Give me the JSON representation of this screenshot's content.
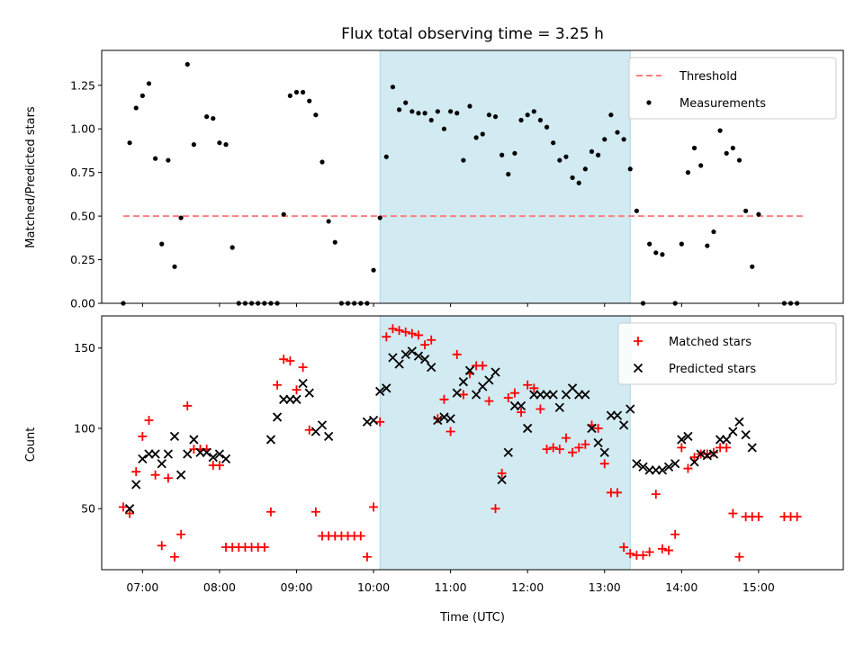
{
  "figure": {
    "title": "Flux total observing time = 3.25 h",
    "xlabel": "Time (UTC)",
    "xticks": [
      "07:00",
      "08:00",
      "09:00",
      "10:00",
      "11:00",
      "12:00",
      "13:00",
      "14:00",
      "15:00"
    ]
  },
  "chart_data": [
    {
      "type": "scatter",
      "panel": "top",
      "ylabel": "Matched/Predicted stars",
      "ylim": [
        0,
        1.45
      ],
      "yticks": [
        "0.00",
        "0.25",
        "0.50",
        "0.75",
        "1.00",
        "1.25"
      ],
      "xlim_hours": [
        6.47,
        16.1
      ],
      "shaded_interval": [
        "10:05",
        "13:20"
      ],
      "threshold": {
        "name": "Threshold",
        "value": 0.5,
        "x_range": [
          "06:45",
          "15:35"
        ],
        "color": "#ff7f7f"
      },
      "legend": {
        "position": "top-right",
        "entries": [
          "Threshold",
          "Measurements"
        ]
      },
      "series": [
        {
          "name": "Measurements",
          "color": "#000000",
          "x": [
            "06:45",
            "06:50",
            "06:55",
            "07:00",
            "07:05",
            "07:10",
            "07:15",
            "07:20",
            "07:25",
            "07:30",
            "07:35",
            "07:40",
            "07:50",
            "07:55",
            "08:00",
            "08:05",
            "08:10",
            "08:15",
            "08:20",
            "08:25",
            "08:30",
            "08:35",
            "08:40",
            "08:45",
            "08:50",
            "08:55",
            "09:00",
            "09:05",
            "09:10",
            "09:15",
            "09:20",
            "09:25",
            "09:30",
            "09:35",
            "09:40",
            "09:45",
            "09:50",
            "09:55",
            "10:00",
            "10:05",
            "10:10",
            "10:15",
            "10:20",
            "10:25",
            "10:30",
            "10:35",
            "10:40",
            "10:45",
            "10:50",
            "10:55",
            "11:00",
            "11:05",
            "11:10",
            "11:15",
            "11:20",
            "11:25",
            "11:30",
            "11:35",
            "11:40",
            "11:45",
            "11:50",
            "11:55",
            "12:00",
            "12:05",
            "12:10",
            "12:15",
            "12:20",
            "12:25",
            "12:30",
            "12:35",
            "12:40",
            "12:45",
            "12:50",
            "12:55",
            "13:00",
            "13:05",
            "13:10",
            "13:15",
            "13:20",
            "13:25",
            "13:30",
            "13:35",
            "13:40",
            "13:45",
            "13:55",
            "14:00",
            "14:05",
            "14:10",
            "14:15",
            "14:20",
            "14:25",
            "14:30",
            "14:35",
            "14:40",
            "14:45",
            "14:50",
            "14:55",
            "15:00",
            "15:20",
            "15:25",
            "15:30"
          ],
          "y": [
            0.0,
            0.92,
            1.12,
            1.19,
            1.26,
            0.83,
            0.34,
            0.82,
            0.21,
            0.49,
            1.37,
            0.91,
            1.07,
            1.06,
            0.92,
            0.91,
            0.32,
            0.0,
            0.0,
            0.0,
            0.0,
            0.0,
            0.0,
            0.0,
            0.51,
            1.19,
            1.21,
            1.21,
            1.16,
            1.08,
            0.81,
            0.47,
            0.35,
            0.0,
            0.0,
            0.0,
            0.0,
            0.0,
            0.19,
            0.49,
            0.84,
            1.24,
            1.11,
            1.15,
            1.1,
            1.09,
            1.09,
            1.05,
            1.1,
            1.0,
            1.1,
            1.09,
            0.82,
            1.13,
            0.95,
            0.97,
            1.08,
            1.07,
            0.85,
            0.74,
            0.86,
            1.05,
            1.08,
            1.1,
            1.05,
            1.01,
            0.92,
            0.82,
            0.84,
            0.72,
            0.69,
            0.77,
            0.87,
            0.85,
            0.94,
            1.08,
            0.98,
            0.94,
            0.77,
            0.53,
            0.0,
            0.34,
            0.29,
            0.28,
            0.0,
            0.34,
            0.75,
            0.89,
            0.79,
            0.33,
            0.41,
            0.99,
            0.86,
            0.89,
            0.82,
            0.53,
            0.21,
            0.51,
            0.0,
            0.0,
            0.0
          ]
        }
      ]
    },
    {
      "type": "scatter",
      "panel": "bottom",
      "ylabel": "Count",
      "ylim": [
        12,
        170
      ],
      "yticks": [
        "50",
        "100",
        "150"
      ],
      "xlim_hours": [
        6.47,
        16.1
      ],
      "shaded_interval": [
        "10:05",
        "13:20"
      ],
      "legend": {
        "position": "top-right",
        "entries": [
          "Matched stars",
          "Predicted stars"
        ]
      },
      "series": [
        {
          "name": "Matched stars",
          "marker": "+",
          "color": "#ff0000",
          "x": [
            "06:45",
            "06:50",
            "06:55",
            "07:00",
            "07:05",
            "07:10",
            "07:15",
            "07:20",
            "07:25",
            "07:30",
            "07:35",
            "07:40",
            "07:45",
            "07:50",
            "07:55",
            "08:00",
            "08:05",
            "08:10",
            "08:15",
            "08:20",
            "08:25",
            "08:30",
            "08:35",
            "08:40",
            "08:45",
            "08:50",
            "08:55",
            "09:00",
            "09:05",
            "09:10",
            "09:15",
            "09:20",
            "09:25",
            "09:30",
            "09:35",
            "09:40",
            "09:45",
            "09:50",
            "09:55",
            "10:00",
            "10:05",
            "10:10",
            "10:15",
            "10:20",
            "10:25",
            "10:30",
            "10:35",
            "10:40",
            "10:45",
            "10:50",
            "10:55",
            "11:00",
            "11:05",
            "11:10",
            "11:15",
            "11:20",
            "11:25",
            "11:30",
            "11:35",
            "11:40",
            "11:45",
            "11:50",
            "11:55",
            "12:00",
            "12:05",
            "12:10",
            "12:15",
            "12:20",
            "12:25",
            "12:30",
            "12:35",
            "12:40",
            "12:45",
            "12:50",
            "12:55",
            "13:00",
            "13:05",
            "13:10",
            "13:15",
            "13:20",
            "13:25",
            "13:30",
            "13:35",
            "13:40",
            "13:45",
            "13:50",
            "13:55",
            "14:00",
            "14:05",
            "14:10",
            "14:15",
            "14:20",
            "14:25",
            "14:30",
            "14:35",
            "14:40",
            "14:45",
            "14:50",
            "14:55",
            "15:00",
            "15:20",
            "15:25",
            "15:30"
          ],
          "y": [
            51,
            47,
            73,
            95,
            105,
            71,
            27,
            69,
            20,
            34,
            114,
            87,
            87,
            87,
            77,
            77,
            26,
            26,
            26,
            26,
            26,
            26,
            26,
            48,
            127,
            143,
            142,
            124,
            138,
            99,
            48,
            33,
            33,
            33,
            33,
            33,
            33,
            33,
            20,
            51,
            104,
            157,
            162,
            161,
            160,
            159,
            158,
            152,
            155,
            106,
            118,
            98,
            146,
            121,
            134,
            139,
            139,
            117,
            50,
            72,
            119,
            122,
            110,
            127,
            125,
            112,
            87,
            88,
            87,
            94,
            85,
            88,
            90,
            102,
            100,
            78,
            60,
            60,
            26,
            22,
            21,
            21,
            23,
            59,
            25,
            24,
            34,
            88,
            75,
            82,
            84,
            84,
            85,
            88,
            88,
            47,
            20,
            45,
            45,
            45,
            45,
            45,
            45
          ],
          "note": "red plus markers"
        },
        {
          "name": "Predicted stars",
          "marker": "x",
          "color": "#000000",
          "x": [
            "06:50",
            "06:55",
            "07:00",
            "07:05",
            "07:10",
            "07:15",
            "07:20",
            "07:25",
            "07:30",
            "07:35",
            "07:40",
            "07:45",
            "07:50",
            "07:55",
            "08:00",
            "08:05",
            "08:40",
            "08:45",
            "08:50",
            "08:55",
            "09:00",
            "09:05",
            "09:10",
            "09:15",
            "09:20",
            "09:25",
            "09:55",
            "10:00",
            "10:05",
            "10:10",
            "10:15",
            "10:20",
            "10:25",
            "10:30",
            "10:35",
            "10:40",
            "10:45",
            "10:50",
            "10:55",
            "11:00",
            "11:05",
            "11:10",
            "11:15",
            "11:20",
            "11:25",
            "11:30",
            "11:35",
            "11:40",
            "11:45",
            "11:50",
            "11:55",
            "12:00",
            "12:05",
            "12:10",
            "12:15",
            "12:20",
            "12:25",
            "12:30",
            "12:35",
            "12:40",
            "12:45",
            "12:50",
            "12:55",
            "13:00",
            "13:05",
            "13:10",
            "13:15",
            "13:20",
            "13:25",
            "13:30",
            "13:35",
            "13:40",
            "13:45",
            "13:50",
            "13:55",
            "14:00",
            "14:05",
            "14:10",
            "14:15",
            "14:20",
            "14:25",
            "14:30",
            "14:35",
            "14:40",
            "14:45",
            "14:50",
            "14:55"
          ],
          "y": [
            50,
            65,
            81,
            84,
            84,
            78,
            84,
            95,
            71,
            84,
            93,
            85,
            85,
            82,
            84,
            81,
            93,
            107,
            118,
            118,
            118,
            128,
            122,
            98,
            102,
            95,
            104,
            105,
            123,
            125,
            144,
            140,
            146,
            148,
            145,
            143,
            138,
            105,
            107,
            106,
            122,
            129,
            136,
            121,
            126,
            130,
            135,
            68,
            85,
            114,
            114,
            100,
            121,
            121,
            121,
            121,
            113,
            121,
            125,
            121,
            121,
            100,
            91,
            85,
            108,
            108,
            102,
            112,
            78,
            76,
            74,
            74,
            74,
            76,
            78,
            93,
            95,
            79,
            84,
            83,
            84,
            93,
            93,
            98,
            104,
            96,
            88
          ]
        }
      ]
    }
  ]
}
